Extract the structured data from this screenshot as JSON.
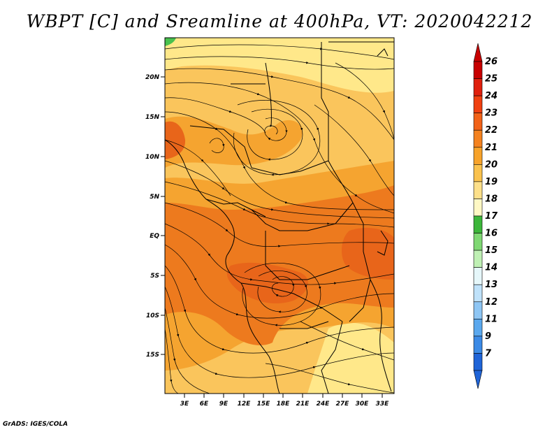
{
  "title": "WBPT [C] and Sreamline at 400hPa, VT: 2020042212",
  "credit": "GrADS: IGES/COLA",
  "map": {
    "lon_ticks": [
      "3E",
      "6E",
      "9E",
      "12E",
      "15E",
      "18E",
      "21E",
      "24E",
      "27E",
      "30E",
      "33E"
    ],
    "lat_ticks": [
      "20N",
      "15N",
      "10N",
      "5N",
      "EQ",
      "5S",
      "10S",
      "15S"
    ],
    "colors": {
      "border": "#000000",
      "wbpt_19": "#ffe88a",
      "wbpt_20": "#fac55c",
      "wbpt_21": "#f5a430",
      "wbpt_22": "#ed7a1e",
      "wbpt_23": "#e8651a",
      "wbpt_17": "#49c14e"
    }
  },
  "colorbar": {
    "labels": [
      "26",
      "25",
      "24",
      "23",
      "22",
      "21",
      "20",
      "19",
      "18",
      "17",
      "16",
      "15",
      "14",
      "13",
      "12",
      "11",
      "9",
      "7"
    ],
    "colors": [
      "#c80000",
      "#e0200d",
      "#f04010",
      "#f26218",
      "#f4821f",
      "#f7a32a",
      "#fac24d",
      "#fde08a",
      "#fff8c4",
      "#3cb63a",
      "#7fd873",
      "#bff0b4",
      "#e6f7fa",
      "#bfe2fa",
      "#8ec6f4",
      "#5aa8ee",
      "#3b8ae6",
      "#1f64d8"
    ]
  }
}
